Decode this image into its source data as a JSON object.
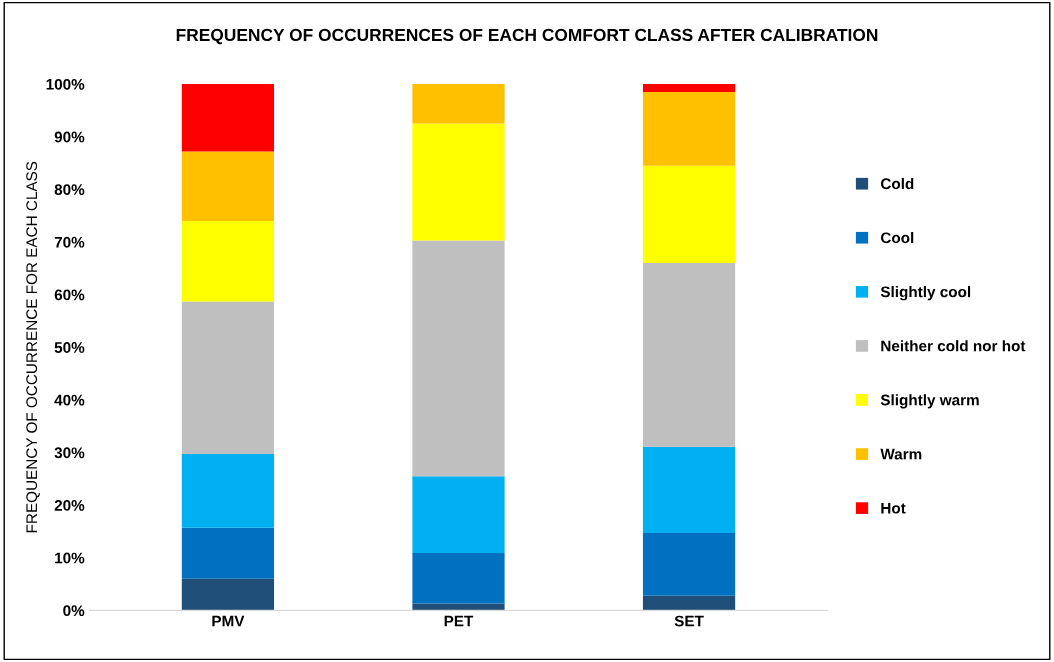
{
  "chart_data": {
    "type": "bar",
    "stacked": true,
    "title": "FREQUENCY OF OCCURRENCES OF EACH COMFORT CLASS AFTER CALIBRATION",
    "ylabel": "FREQUENCY OF OCCURRENCE FOR EACH CLASS",
    "categories": [
      "PMV",
      "PET",
      "SET"
    ],
    "series": [
      {
        "name": "Cold",
        "color": "#1f4e79",
        "values": [
          6.0,
          1.3,
          2.8
        ]
      },
      {
        "name": "Cool",
        "color": "#0070c0",
        "values": [
          9.7,
          9.6,
          11.9
        ]
      },
      {
        "name": "Slightly cool",
        "color": "#00b0f0",
        "values": [
          14.0,
          14.6,
          16.4
        ]
      },
      {
        "name": "Neither cold nor hot",
        "color": "#bfbfbf",
        "values": [
          29.0,
          44.8,
          34.9
        ]
      },
      {
        "name": "Slightly warm",
        "color": "#ffff00",
        "values": [
          15.3,
          22.2,
          18.5
        ]
      },
      {
        "name": "Warm",
        "color": "#ffc000",
        "values": [
          13.2,
          7.5,
          14.0
        ]
      },
      {
        "name": "Hot",
        "color": "#ff0000",
        "values": [
          12.8,
          0,
          1.5
        ]
      }
    ],
    "ylim": [
      0,
      100
    ],
    "yticks": [
      {
        "value": 0,
        "label": "0%"
      },
      {
        "value": 10,
        "label": "10%"
      },
      {
        "value": 20,
        "label": "20%"
      },
      {
        "value": 30,
        "label": "30%"
      },
      {
        "value": 40,
        "label": "40%"
      },
      {
        "value": 50,
        "label": "50%"
      },
      {
        "value": 60,
        "label": "60%"
      },
      {
        "value": 70,
        "label": "70%"
      },
      {
        "value": 80,
        "label": "80%"
      },
      {
        "value": 90,
        "label": "90%"
      },
      {
        "value": 100,
        "label": "100%"
      }
    ],
    "grid": false,
    "legend": "right"
  }
}
